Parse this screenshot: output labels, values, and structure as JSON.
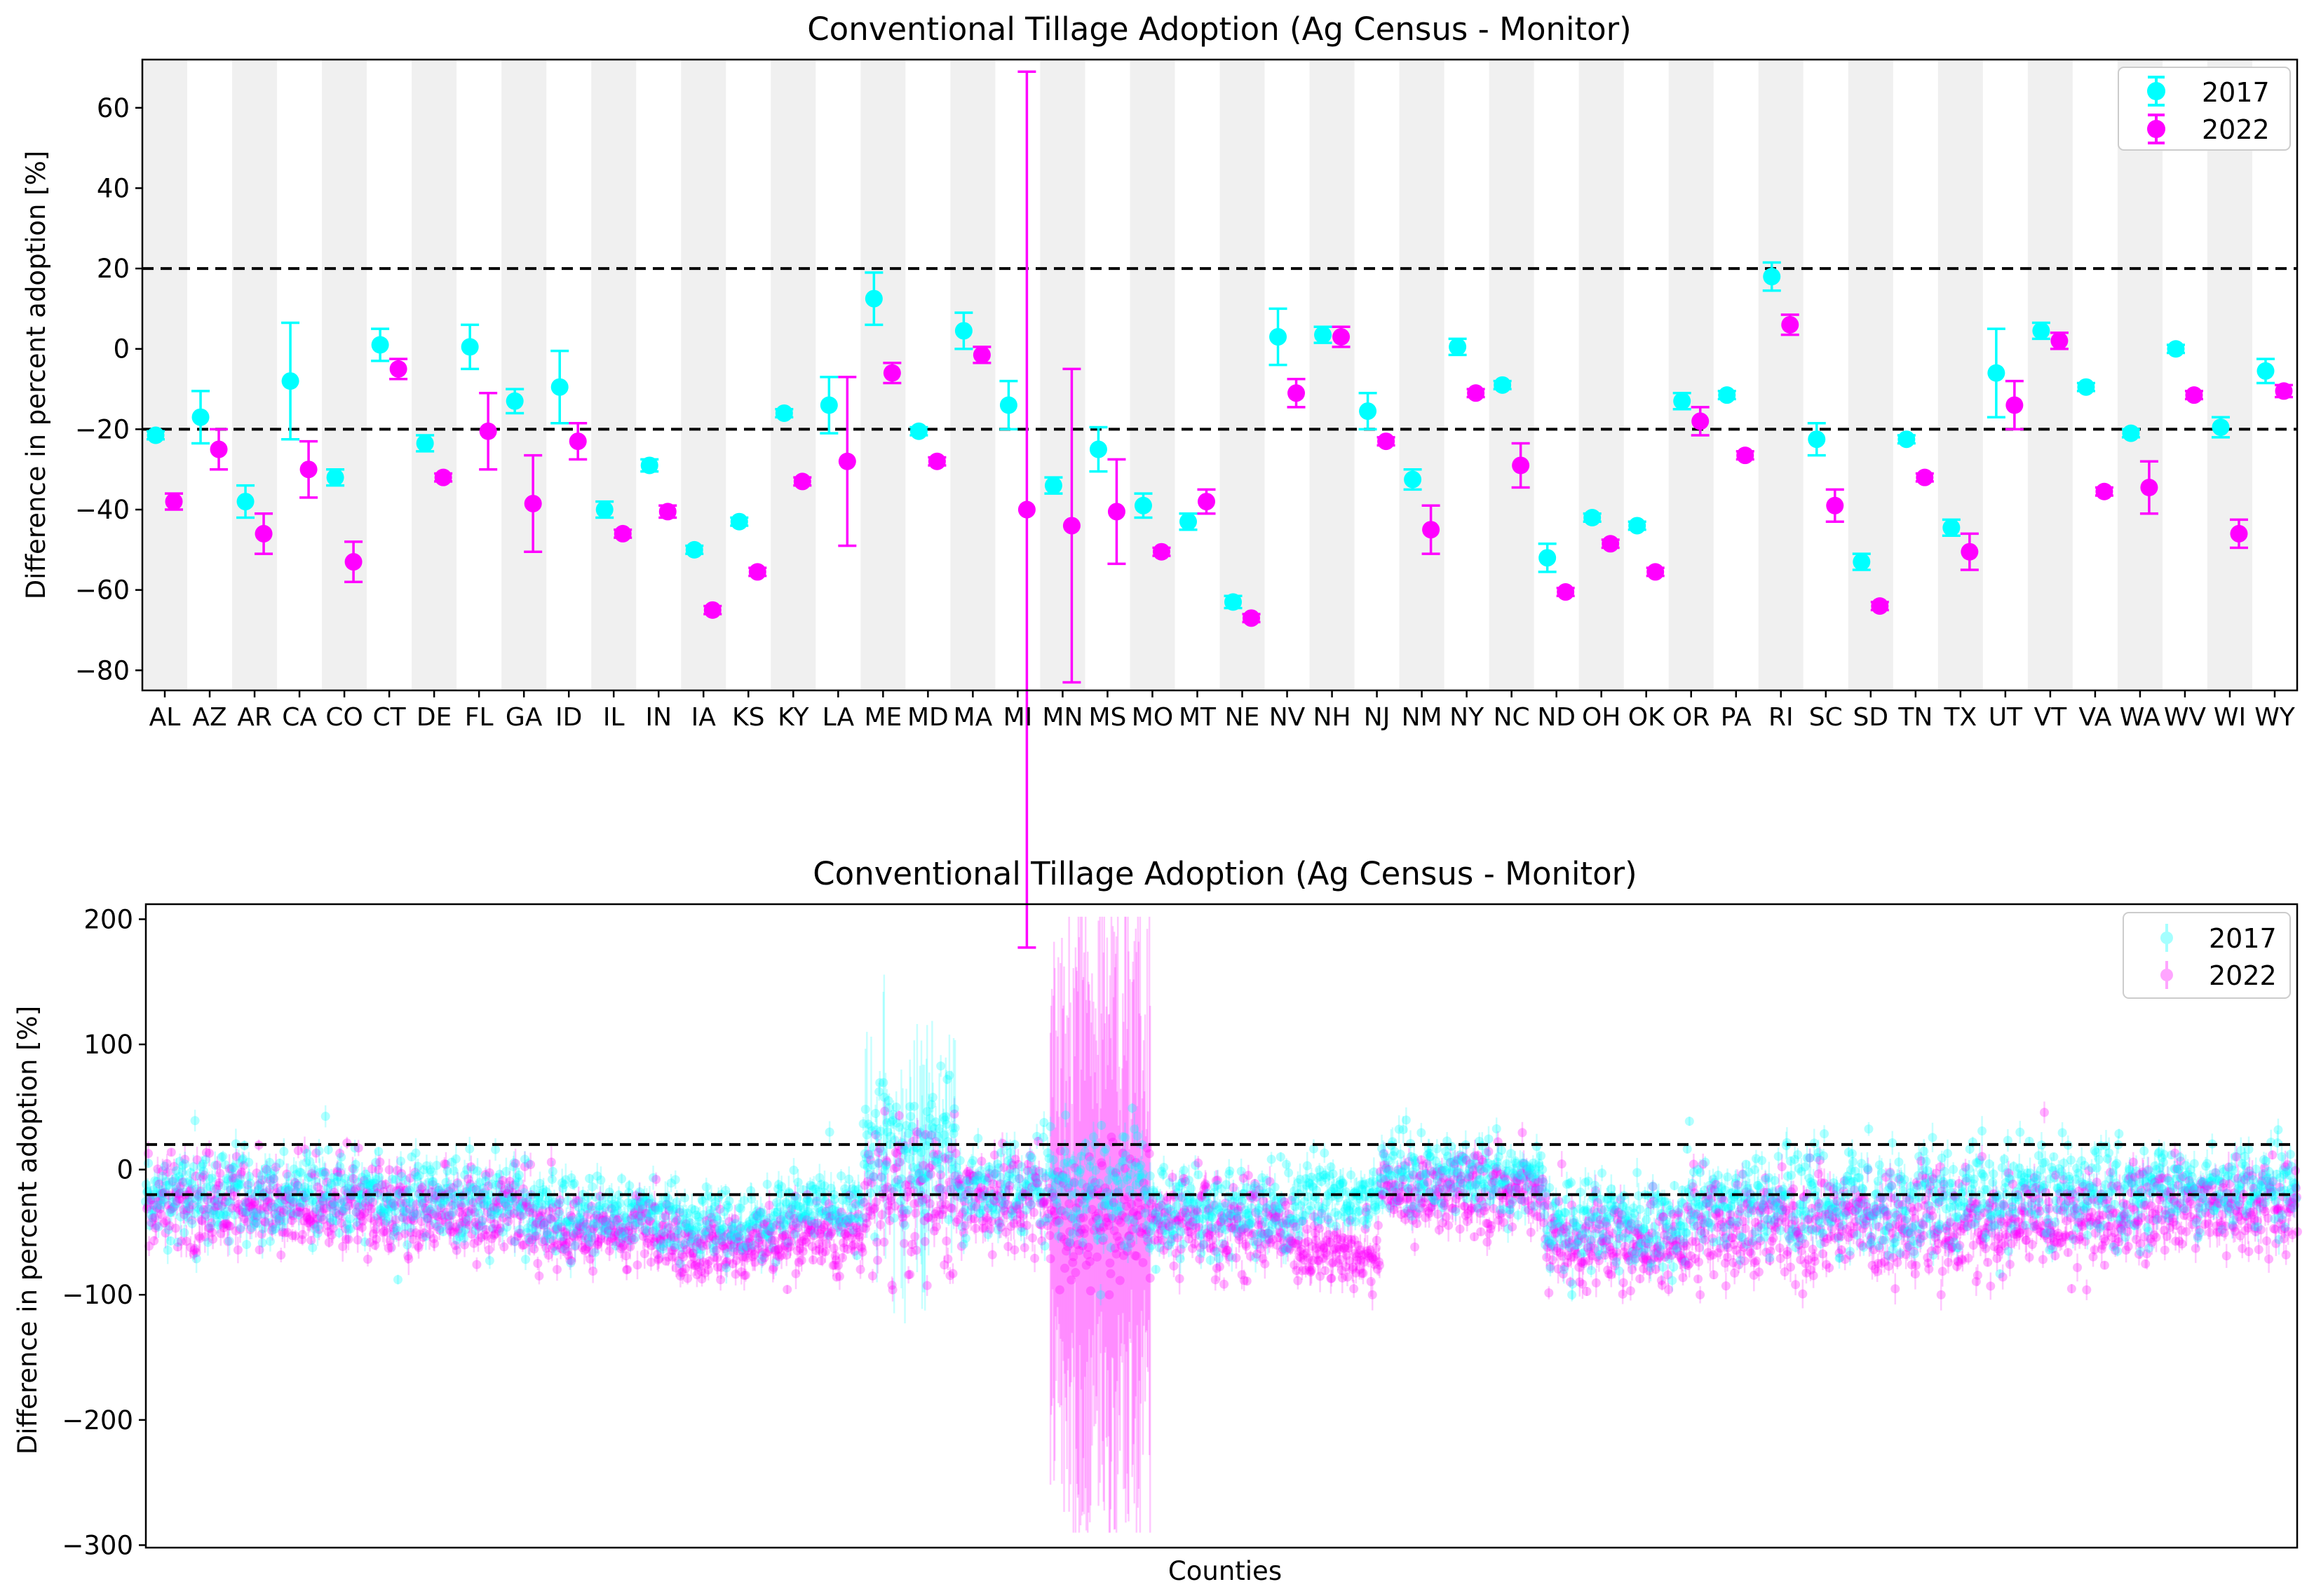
{
  "chart_data": [
    {
      "type": "errorbar",
      "title": "Conventional Tillage Adoption (Ag Census - Monitor)",
      "xlabel": "",
      "ylabel": "Difference in percent adoption [%]",
      "ylim": [
        -85,
        72
      ],
      "yticks": [
        -80,
        -60,
        -40,
        -20,
        0,
        20,
        40,
        60
      ],
      "yticklabels": [
        "−80",
        "−60",
        "−40",
        "−20",
        "0",
        "20",
        "40",
        "60"
      ],
      "reference_lines": [
        20,
        -20
      ],
      "legend": {
        "position": "top-right"
      },
      "categories": [
        "AL",
        "AZ",
        "AR",
        "CA",
        "CO",
        "CT",
        "DE",
        "FL",
        "GA",
        "ID",
        "IL",
        "IN",
        "IA",
        "KS",
        "KY",
        "LA",
        "ME",
        "MD",
        "MA",
        "MI",
        "MN",
        "MS",
        "MO",
        "MT",
        "NE",
        "NV",
        "NH",
        "NJ",
        "NM",
        "NY",
        "NC",
        "ND",
        "OH",
        "OK",
        "OR",
        "PA",
        "RI",
        "SC",
        "SD",
        "TN",
        "TX",
        "UT",
        "VT",
        "VA",
        "WA",
        "WV",
        "WI",
        "WY"
      ],
      "series": [
        {
          "name": "2017",
          "color": "#00ffff",
          "values": [
            -21.5,
            -17,
            -38,
            -8,
            -32,
            1,
            -23.5,
            0.5,
            -13,
            -9.5,
            -40,
            -29,
            -50,
            -43,
            -16,
            -14,
            12.5,
            -20.5,
            4.5,
            -14,
            -34,
            -25,
            -39,
            -43,
            -63,
            3,
            3.5,
            -15.5,
            -32.5,
            0.5,
            -9,
            -52,
            -42,
            -44,
            -13,
            -11.5,
            18,
            -22.5,
            -53,
            -22.5,
            -44.5,
            -6,
            4.5,
            -9.5,
            -21,
            0,
            -19.5,
            -5.5
          ],
          "errors": [
            1,
            6.5,
            4,
            14.5,
            2,
            4,
            2,
            5.5,
            3,
            9,
            2,
            1.5,
            1,
            1,
            1,
            7,
            6.5,
            1,
            4.5,
            6,
            2,
            5.5,
            3,
            2,
            1.5,
            7,
            2,
            4.5,
            2.5,
            2,
            1,
            3.5,
            1,
            1,
            2,
            1,
            3.5,
            4,
            2,
            1,
            2,
            11,
            2,
            1,
            1,
            1,
            2.5,
            3
          ]
        },
        {
          "name": "2022",
          "color": "#ff00ff",
          "values": [
            -38,
            -25,
            -46,
            -30,
            -53,
            -5,
            -32,
            -20.5,
            -38.5,
            -23,
            -46,
            -40.5,
            -65,
            -55.5,
            -33,
            -28,
            -6,
            -28,
            -1.5,
            -40,
            -44,
            -40.5,
            -50.5,
            -38,
            -67,
            -11,
            3,
            -23,
            -45,
            -11,
            -29,
            -60.5,
            -48.5,
            -55.5,
            -18,
            -26.5,
            6,
            -39,
            -64,
            -32,
            -50.5,
            -14,
            2,
            -35.5,
            -34.5,
            -11.5,
            -46,
            -10.5
          ],
          "errors": [
            2,
            5,
            5,
            7,
            5,
            2.5,
            1,
            9.5,
            12,
            4.5,
            1,
            1.5,
            1,
            1,
            1,
            21,
            2.5,
            1,
            2,
            109,
            39,
            13,
            1,
            3,
            1,
            3.5,
            2.5,
            1,
            6,
            1,
            5.5,
            1,
            1,
            1,
            3.5,
            1,
            2.5,
            4,
            1,
            1,
            4.5,
            6,
            2,
            1,
            6.5,
            1,
            3.5,
            1.5
          ]
        }
      ]
    },
    {
      "type": "scatter",
      "title": "Conventional Tillage Adoption (Ag Census - Monitor)",
      "xlabel": "Counties",
      "ylabel": "Difference in percent adoption [%]",
      "ylim": [
        -302,
        212
      ],
      "yticks": [
        -300,
        -200,
        -100,
        0,
        100,
        200
      ],
      "yticklabels": [
        "−300",
        "−200",
        "−100",
        "0",
        "100",
        "200"
      ],
      "reference_lines": [
        20,
        -20
      ],
      "legend": {
        "position": "top-right"
      },
      "n_counties": 3000,
      "series": [
        {
          "name": "2017",
          "color": "#00ffff",
          "alpha": 0.3
        },
        {
          "name": "2022",
          "color": "#ff00ff",
          "alpha": 0.3
        }
      ],
      "regions": [
        {
          "start": 0,
          "end": 330,
          "mean2017": -20,
          "mean2022": -30,
          "spread": 18
        },
        {
          "start": 330,
          "end": 540,
          "mean2017": -25,
          "mean2022": -35,
          "spread": 18
        },
        {
          "start": 540,
          "end": 740,
          "mean2017": -38,
          "mean2022": -48,
          "spread": 14
        },
        {
          "start": 740,
          "end": 880,
          "mean2017": -45,
          "mean2022": -62,
          "spread": 12
        },
        {
          "start": 880,
          "end": 1000,
          "mean2017": -30,
          "mean2022": -55,
          "spread": 14
        },
        {
          "start": 1000,
          "end": 1130,
          "mean2017": 15,
          "mean2022": -25,
          "spread": 28
        },
        {
          "start": 1130,
          "end": 1260,
          "mean2017": -15,
          "mean2022": -22,
          "spread": 18
        },
        {
          "start": 1260,
          "end": 1400,
          "mean2017": -15,
          "mean2022": -40,
          "spread": 26
        },
        {
          "start": 1400,
          "end": 1600,
          "mean2017": -35,
          "mean2022": -45,
          "spread": 18
        },
        {
          "start": 1600,
          "end": 1720,
          "mean2017": -20,
          "mean2022": -65,
          "spread": 14
        },
        {
          "start": 1720,
          "end": 1950,
          "mean2017": -5,
          "mean2022": -20,
          "spread": 15
        },
        {
          "start": 1950,
          "end": 2150,
          "mean2017": -45,
          "mean2022": -60,
          "spread": 18
        },
        {
          "start": 2150,
          "end": 2380,
          "mean2017": -25,
          "mean2022": -45,
          "spread": 20
        },
        {
          "start": 2380,
          "end": 2600,
          "mean2017": -25,
          "mean2022": -45,
          "spread": 20
        },
        {
          "start": 2600,
          "end": 2800,
          "mean2017": -20,
          "mean2022": -40,
          "spread": 20
        },
        {
          "start": 2800,
          "end": 3000,
          "mean2017": -15,
          "mean2022": -28,
          "spread": 16
        }
      ],
      "error_region": {
        "start": 1260,
        "end": 1400,
        "low": -290,
        "high": 200
      }
    }
  ]
}
